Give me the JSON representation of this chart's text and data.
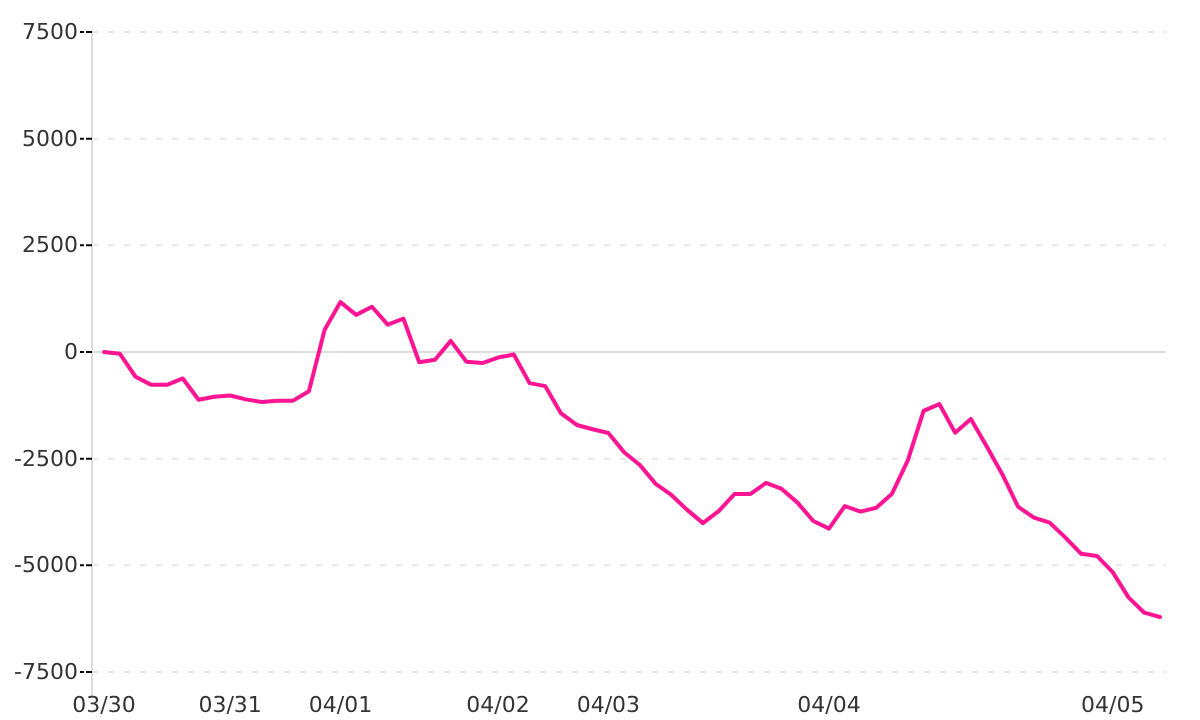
{
  "chart_data": {
    "type": "line",
    "grid": "y",
    "marker": "none",
    "line_style": "solid",
    "categories": [
      "03/30",
      null,
      null,
      null,
      null,
      null,
      null,
      null,
      "03/31",
      null,
      null,
      null,
      null,
      null,
      null,
      "04/01",
      null,
      null,
      null,
      null,
      null,
      null,
      null,
      null,
      null,
      "04/02",
      null,
      null,
      null,
      null,
      null,
      null,
      "04/03",
      null,
      null,
      null,
      null,
      null,
      null,
      null,
      null,
      null,
      null,
      null,
      null,
      null,
      "04/04",
      null,
      null,
      null,
      null,
      null,
      null,
      null,
      null,
      null,
      null,
      null,
      null,
      null,
      null,
      null,
      null,
      null,
      "04/05",
      null,
      null,
      null
    ],
    "ylim": [
      -7500,
      7500
    ],
    "yticks": [
      -7500,
      -5000,
      -2500,
      0,
      2500,
      5000,
      7500
    ],
    "series": [
      {
        "color": "#ff1493",
        "values": [
          0,
          -40,
          -580,
          -770,
          -770,
          -620,
          -1120,
          -1050,
          -1020,
          -1110,
          -1170,
          -1140,
          -1140,
          -920,
          520,
          1170,
          870,
          1060,
          640,
          780,
          -240,
          -180,
          260,
          -230,
          -260,
          -130,
          -60,
          -730,
          -800,
          -1440,
          -1710,
          -1810,
          -1900,
          -2350,
          -2650,
          -3090,
          -3350,
          -3700,
          -4010,
          -3730,
          -3330,
          -3330,
          -3070,
          -3210,
          -3530,
          -3960,
          -4140,
          -3610,
          -3740,
          -3650,
          -3320,
          -2540,
          -1380,
          -1220,
          -1890,
          -1570,
          -2210,
          -2870,
          -3630,
          -3880,
          -4000,
          -4350,
          -4730,
          -4780,
          -5160,
          -5750,
          -6110,
          -6210
        ]
      }
    ]
  }
}
